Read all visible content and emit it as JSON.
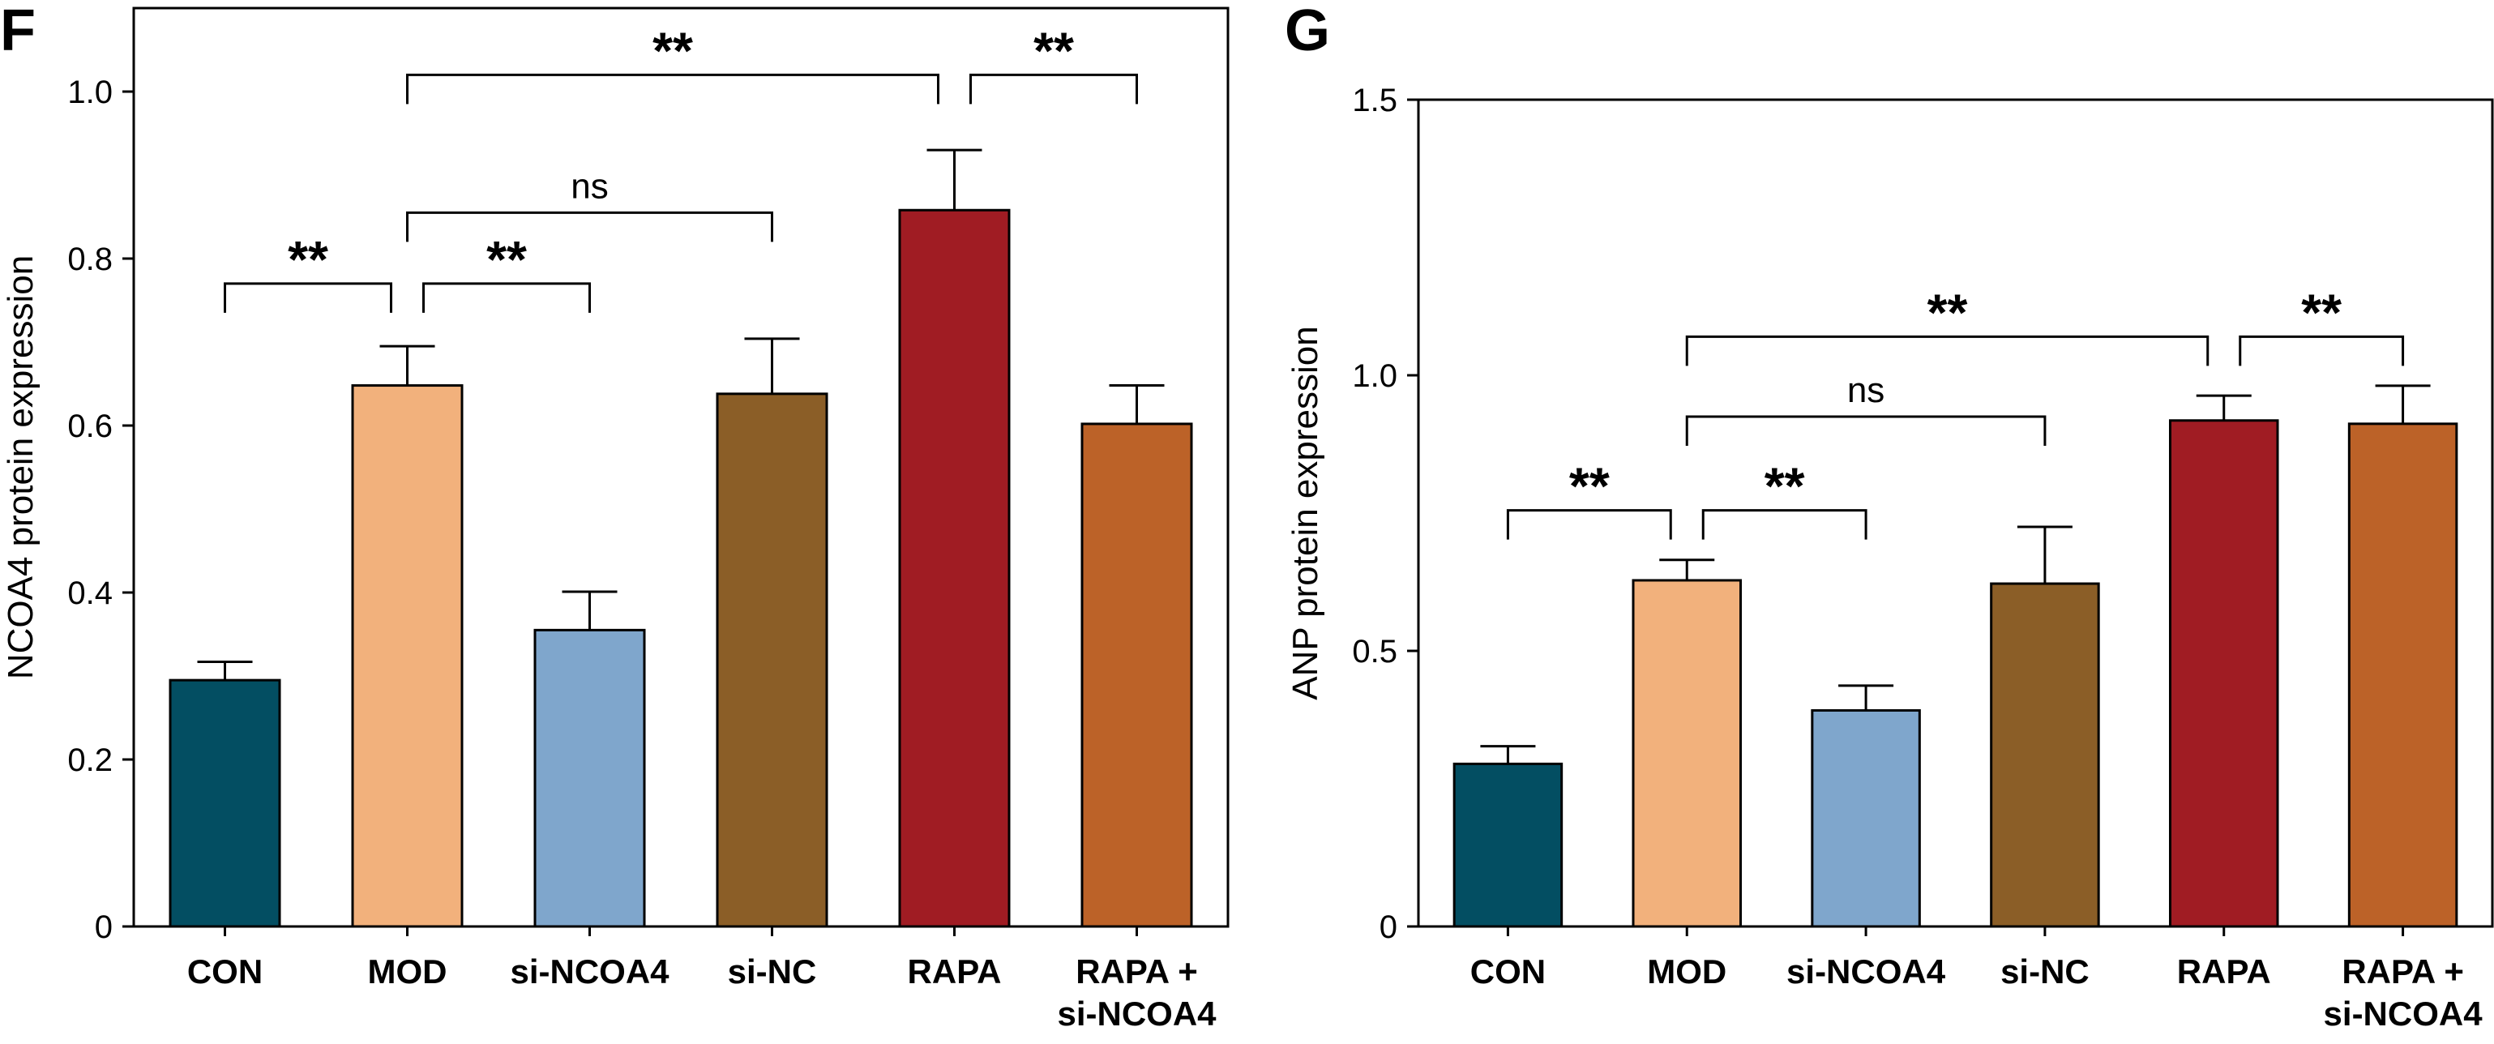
{
  "chart_data": [
    {
      "panel": "F",
      "type": "bar",
      "ylabel": "NCOA4 protein expression",
      "ylim": [
        0,
        1.1
      ],
      "yticks": [
        0,
        0.2,
        0.4,
        0.6,
        0.8,
        1.0
      ],
      "ytick_labels": [
        "0",
        "0.2",
        "0.4",
        "0.6",
        "0.8",
        "1.0"
      ],
      "categories": [
        [
          "CON"
        ],
        [
          "MOD"
        ],
        [
          "si-NCOA4"
        ],
        [
          "si-NC"
        ],
        [
          "RAPA"
        ],
        [
          "RAPA +",
          "si-NCOA4"
        ]
      ],
      "values": [
        0.295,
        0.648,
        0.355,
        0.638,
        0.858,
        0.602
      ],
      "errors": [
        0.022,
        0.047,
        0.046,
        0.066,
        0.072,
        0.046
      ],
      "colors": [
        "#034E62",
        "#F2B17C",
        "#7FA6CC",
        "#8B5E27",
        "#A01C23",
        "#BC6228"
      ],
      "comparisons": [
        {
          "a": 0,
          "b": 1,
          "y": 0.77,
          "label": "**"
        },
        {
          "a": 1,
          "b": 2,
          "y": 0.77,
          "label": "**"
        },
        {
          "a": 1,
          "b": 3,
          "y": 0.855,
          "label": "ns"
        },
        {
          "a": 1,
          "b": 4,
          "y": 1.02,
          "label": "**"
        },
        {
          "a": 4,
          "b": 5,
          "y": 1.02,
          "label": "**"
        }
      ]
    },
    {
      "panel": "G",
      "type": "bar",
      "ylabel": "ANP protein expression",
      "ylim": [
        0,
        1.5
      ],
      "yticks": [
        0,
        0.5,
        1.0,
        1.5
      ],
      "ytick_labels": [
        "0",
        "0.5",
        "1.0",
        "1.5"
      ],
      "categories": [
        [
          "CON"
        ],
        [
          "MOD"
        ],
        [
          "si-NCOA4"
        ],
        [
          "si-NC"
        ],
        [
          "RAPA"
        ],
        [
          "RAPA +",
          "si-NCOA4"
        ]
      ],
      "values": [
        0.295,
        0.628,
        0.392,
        0.622,
        0.918,
        0.912
      ],
      "errors": [
        0.032,
        0.037,
        0.045,
        0.103,
        0.045,
        0.069
      ],
      "colors": [
        "#034E62",
        "#F2B17C",
        "#7FA6CC",
        "#8B5E27",
        "#A01C23",
        "#BC6228"
      ],
      "comparisons": [
        {
          "a": 0,
          "b": 1,
          "y": 0.755,
          "label": "**"
        },
        {
          "a": 1,
          "b": 2,
          "y": 0.755,
          "label": "**"
        },
        {
          "a": 1,
          "b": 3,
          "y": 0.925,
          "label": "ns"
        },
        {
          "a": 1,
          "b": 4,
          "y": 1.07,
          "label": "**"
        },
        {
          "a": 4,
          "b": 5,
          "y": 1.07,
          "label": "**"
        }
      ]
    }
  ]
}
